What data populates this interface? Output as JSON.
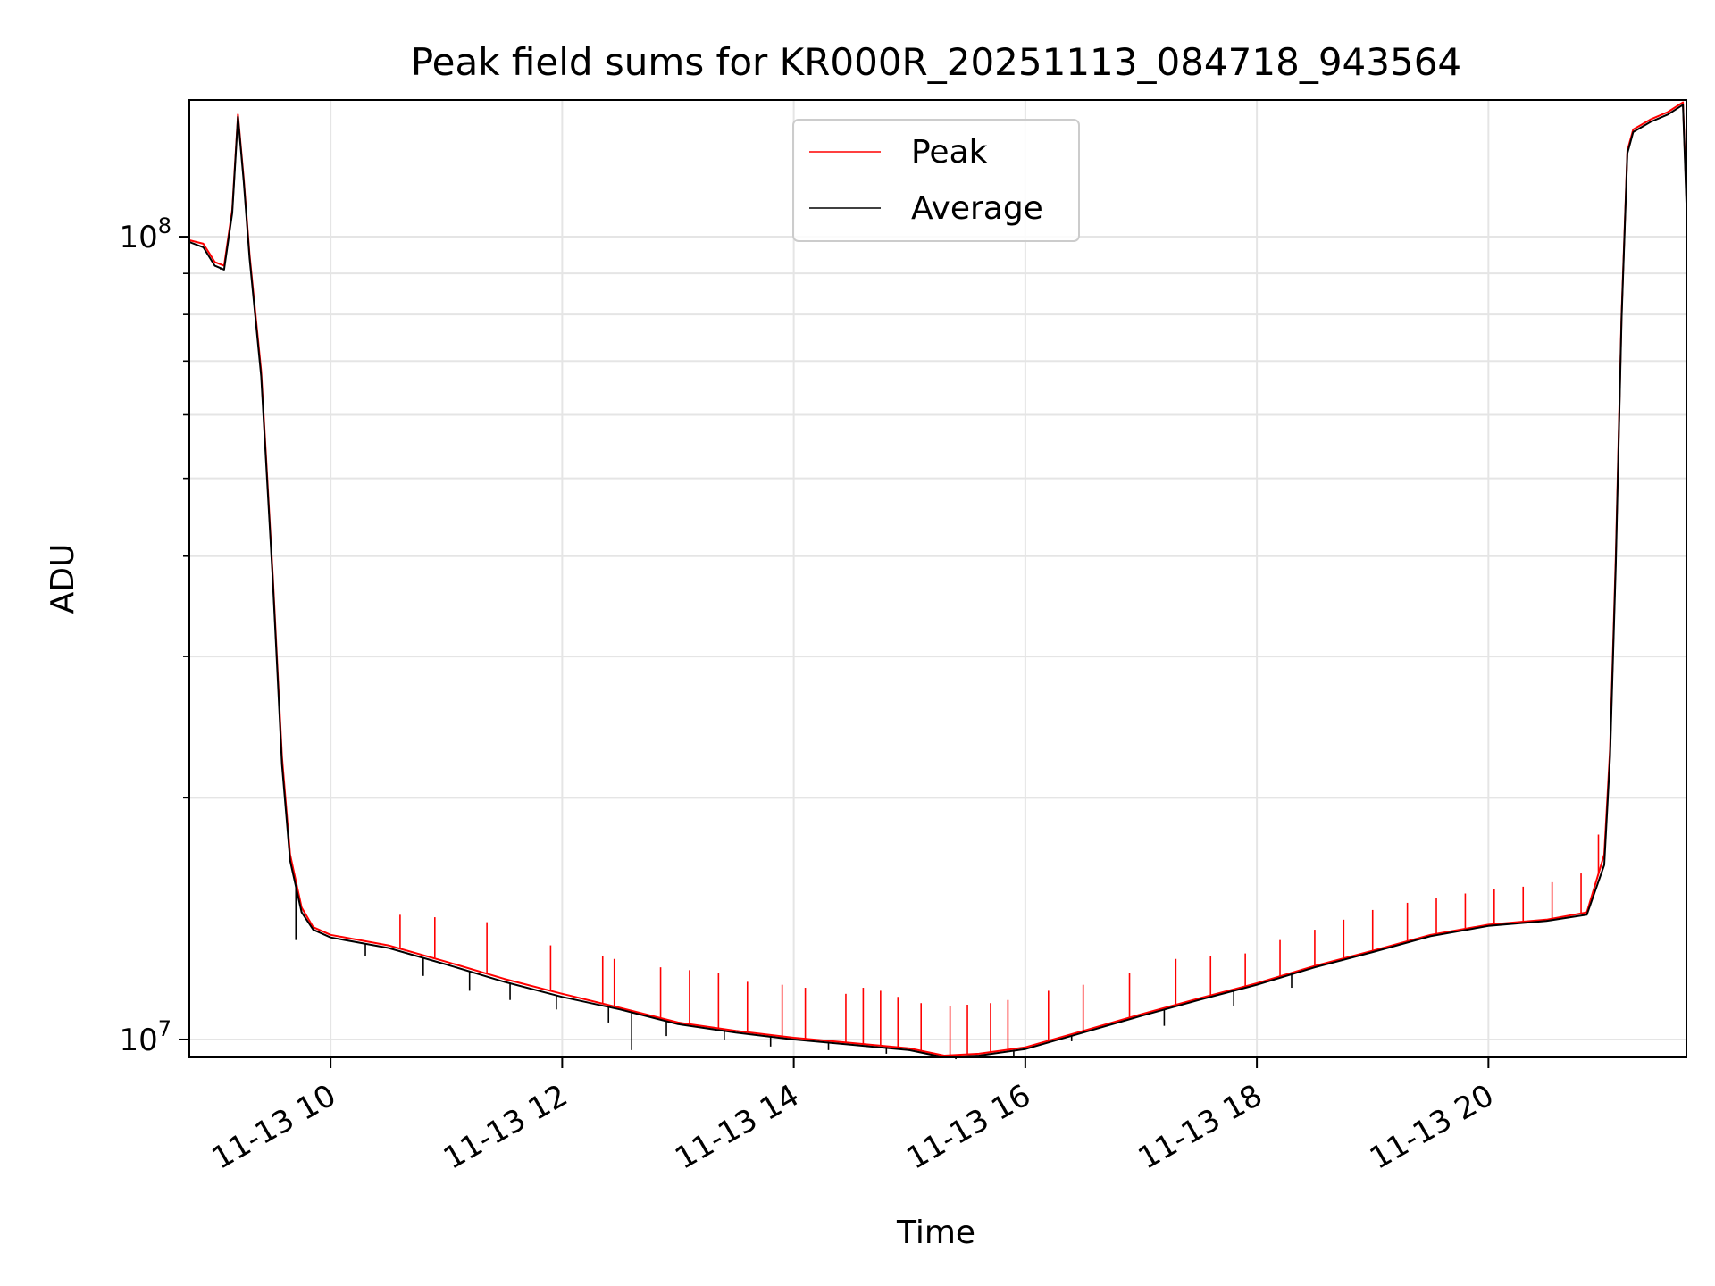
{
  "chart_data": {
    "type": "line",
    "title": "Peak field sums for KR000R_20251113_084718_943564",
    "xlabel": "Time",
    "ylabel": "ADU",
    "x_unit": "hours since 2025-11-13 00:00",
    "xlim": [
      8.78,
      21.71
    ],
    "ylim": [
      9500000,
      148000000
    ],
    "yscale": "log",
    "grid": true,
    "legend": {
      "position": "top-center"
    },
    "x_ticks": [
      {
        "value": 10,
        "label": "11-13 10"
      },
      {
        "value": 12,
        "label": "11-13 12"
      },
      {
        "value": 14,
        "label": "11-13 14"
      },
      {
        "value": 16,
        "label": "11-13 16"
      },
      {
        "value": 18,
        "label": "11-13 18"
      },
      {
        "value": 20,
        "label": "11-13 20"
      }
    ],
    "y_ticks": [
      {
        "value": 10000000,
        "base": "10",
        "exp": "7"
      },
      {
        "value": 100000000,
        "base": "10",
        "exp": "8"
      }
    ],
    "series": [
      {
        "name": "Peak",
        "color": "#ff0000",
        "points": [
          [
            8.78,
            99000000
          ],
          [
            8.9,
            98000000
          ],
          [
            9.0,
            93000000
          ],
          [
            9.08,
            92000000
          ],
          [
            9.15,
            108000000
          ],
          [
            9.2,
            142000000
          ],
          [
            9.25,
            118000000
          ],
          [
            9.3,
            95000000
          ],
          [
            9.4,
            68000000
          ],
          [
            9.5,
            38000000
          ],
          [
            9.58,
            22500000
          ],
          [
            9.65,
            17000000
          ],
          [
            9.75,
            14600000
          ],
          [
            9.85,
            13800000
          ],
          [
            10.0,
            13500000
          ],
          [
            10.5,
            13100000
          ],
          [
            11.0,
            12500000
          ],
          [
            11.5,
            11900000
          ],
          [
            12.0,
            11400000
          ],
          [
            12.5,
            10950000
          ],
          [
            13.0,
            10500000
          ],
          [
            13.5,
            10250000
          ],
          [
            14.0,
            10050000
          ],
          [
            14.5,
            9900000
          ],
          [
            15.0,
            9750000
          ],
          [
            15.3,
            9550000
          ],
          [
            15.6,
            9600000
          ],
          [
            16.0,
            9780000
          ],
          [
            16.5,
            10250000
          ],
          [
            17.0,
            10750000
          ],
          [
            17.5,
            11250000
          ],
          [
            18.0,
            11750000
          ],
          [
            18.5,
            12350000
          ],
          [
            19.0,
            12900000
          ],
          [
            19.5,
            13500000
          ],
          [
            20.0,
            13900000
          ],
          [
            20.5,
            14100000
          ],
          [
            20.85,
            14400000
          ],
          [
            21.0,
            17000000
          ],
          [
            21.05,
            23000000
          ],
          [
            21.1,
            40000000
          ],
          [
            21.15,
            80000000
          ],
          [
            21.2,
            128000000
          ],
          [
            21.25,
            136000000
          ],
          [
            21.4,
            140000000
          ],
          [
            21.55,
            143000000
          ],
          [
            21.68,
            147000000
          ],
          [
            21.71,
            112000000
          ]
        ],
        "spikes": [
          [
            10.6,
            14300000
          ],
          [
            10.9,
            14200000
          ],
          [
            11.35,
            14000000
          ],
          [
            11.9,
            13100000
          ],
          [
            12.35,
            12700000
          ],
          [
            12.45,
            12600000
          ],
          [
            12.85,
            12300000
          ],
          [
            13.1,
            12200000
          ],
          [
            13.35,
            12100000
          ],
          [
            13.6,
            11800000
          ],
          [
            13.9,
            11700000
          ],
          [
            14.1,
            11600000
          ],
          [
            14.45,
            11400000
          ],
          [
            14.6,
            11600000
          ],
          [
            14.75,
            11500000
          ],
          [
            14.9,
            11300000
          ],
          [
            15.1,
            11100000
          ],
          [
            15.35,
            11000000
          ],
          [
            15.5,
            11050000
          ],
          [
            15.7,
            11100000
          ],
          [
            15.85,
            11200000
          ],
          [
            16.2,
            11500000
          ],
          [
            16.5,
            11700000
          ],
          [
            16.9,
            12100000
          ],
          [
            17.3,
            12600000
          ],
          [
            17.6,
            12700000
          ],
          [
            17.9,
            12800000
          ],
          [
            18.2,
            13300000
          ],
          [
            18.5,
            13700000
          ],
          [
            18.75,
            14100000
          ],
          [
            19.0,
            14500000
          ],
          [
            19.3,
            14800000
          ],
          [
            19.55,
            15000000
          ],
          [
            19.8,
            15200000
          ],
          [
            20.05,
            15400000
          ],
          [
            20.3,
            15500000
          ],
          [
            20.55,
            15700000
          ],
          [
            20.8,
            16100000
          ],
          [
            20.95,
            18000000
          ]
        ]
      },
      {
        "name": "Average",
        "color": "#000000",
        "points": [
          [
            8.78,
            98500000
          ],
          [
            8.9,
            97000000
          ],
          [
            9.0,
            92000000
          ],
          [
            9.08,
            91000000
          ],
          [
            9.15,
            107000000
          ],
          [
            9.2,
            141000000
          ],
          [
            9.25,
            117000000
          ],
          [
            9.3,
            94000000
          ],
          [
            9.4,
            67000000
          ],
          [
            9.5,
            37500000
          ],
          [
            9.58,
            22000000
          ],
          [
            9.65,
            16700000
          ],
          [
            9.75,
            14400000
          ],
          [
            9.85,
            13700000
          ],
          [
            10.0,
            13400000
          ],
          [
            10.5,
            13000000
          ],
          [
            11.0,
            12400000
          ],
          [
            11.5,
            11800000
          ],
          [
            12.0,
            11300000
          ],
          [
            12.5,
            10900000
          ],
          [
            13.0,
            10450000
          ],
          [
            13.5,
            10200000
          ],
          [
            14.0,
            10000000
          ],
          [
            14.5,
            9850000
          ],
          [
            15.0,
            9700000
          ],
          [
            15.3,
            9500000
          ],
          [
            15.6,
            9550000
          ],
          [
            16.0,
            9730000
          ],
          [
            16.5,
            10200000
          ],
          [
            17.0,
            10700000
          ],
          [
            17.5,
            11200000
          ],
          [
            18.0,
            11700000
          ],
          [
            18.5,
            12300000
          ],
          [
            19.0,
            12850000
          ],
          [
            19.5,
            13450000
          ],
          [
            20.0,
            13850000
          ],
          [
            20.5,
            14050000
          ],
          [
            20.85,
            14300000
          ],
          [
            21.0,
            16500000
          ],
          [
            21.05,
            22500000
          ],
          [
            21.1,
            39000000
          ],
          [
            21.15,
            79000000
          ],
          [
            21.2,
            127000000
          ],
          [
            21.25,
            135000000
          ],
          [
            21.4,
            139000000
          ],
          [
            21.55,
            142000000
          ],
          [
            21.68,
            146000000
          ],
          [
            21.71,
            110000000
          ]
        ],
        "dips": [
          [
            9.05,
            91000000
          ],
          [
            9.7,
            13300000
          ],
          [
            10.3,
            12700000
          ],
          [
            10.8,
            12000000
          ],
          [
            11.2,
            11500000
          ],
          [
            11.55,
            11200000
          ],
          [
            11.95,
            10900000
          ],
          [
            12.4,
            10500000
          ],
          [
            12.6,
            9700000
          ],
          [
            12.9,
            10100000
          ],
          [
            13.4,
            10000000
          ],
          [
            13.8,
            9800000
          ],
          [
            14.3,
            9700000
          ],
          [
            14.8,
            9600000
          ],
          [
            15.4,
            9450000
          ],
          [
            15.9,
            9500000
          ],
          [
            16.4,
            9950000
          ],
          [
            17.2,
            10400000
          ],
          [
            17.8,
            11000000
          ],
          [
            18.3,
            11600000
          ]
        ]
      }
    ]
  }
}
